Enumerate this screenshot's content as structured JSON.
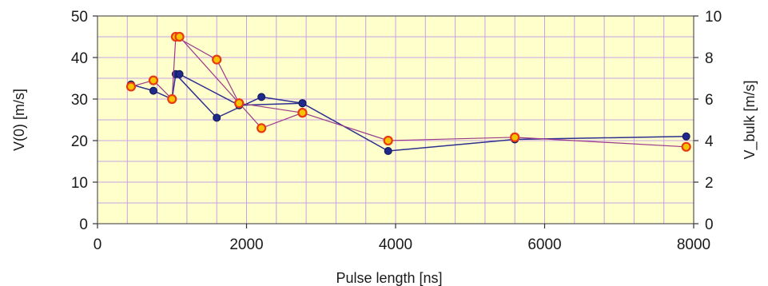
{
  "chart_data": {
    "type": "line",
    "xlabel": "Pulse length  [ns]",
    "ylabel_left": "V(0)  [m/s]",
    "ylabel_right": "V_bulk  [m/s]",
    "xlim": [
      0,
      8000
    ],
    "ylim_left": [
      0,
      50
    ],
    "ylim_right": [
      0,
      10
    ],
    "x_ticks": [
      0,
      2000,
      4000,
      6000,
      8000
    ],
    "y_ticks_left": [
      0,
      10,
      20,
      30,
      40,
      50
    ],
    "y_ticks_right": [
      0,
      2,
      4,
      6,
      8,
      10
    ],
    "grid": true,
    "colors": {
      "plot_background": "#ffffcc",
      "grid": "#c8a0e6",
      "series_1_line": "#2b2f8f",
      "series_1_marker": "#1f2a8a",
      "series_2_line": "#9a3a8a",
      "series_2_marker_fill": "#f5c400",
      "series_2_marker_edge": "#e83a14"
    },
    "series": [
      {
        "axis": "left",
        "marker": "filled-circle",
        "x": [
          450,
          750,
          1000,
          1050,
          1600,
          2200,
          2750,
          3900,
          5600,
          7900
        ],
        "y": [
          33.5,
          32,
          30,
          36,
          25.5,
          30.5,
          29,
          17.5,
          20.3,
          21
        ]
      },
      {
        "axis": "left",
        "marker": "open-circle",
        "x": [
          450,
          750,
          1000,
          1050,
          1600,
          1900,
          2200,
          2750,
          3900,
          5600,
          7900
        ],
        "y": [
          33,
          34.5,
          30,
          45,
          39.5,
          29,
          23,
          26.7,
          20,
          20.8,
          18.5
        ]
      },
      {
        "axis": "left",
        "marker": "filled-circle",
        "x": [
          1100,
          1900,
          2750
        ],
        "y": [
          36,
          28.5,
          29
        ]
      },
      {
        "axis": "left",
        "marker": "open-circle",
        "x": [
          1100,
          1900,
          2750
        ],
        "y": [
          45,
          29,
          26.7
        ]
      }
    ]
  }
}
